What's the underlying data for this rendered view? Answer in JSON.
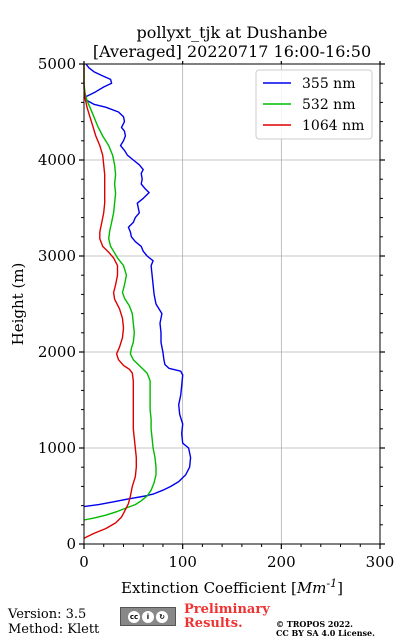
{
  "title": {
    "line1": "pollyxt_tjk at Dushanbe",
    "line2": "[Averaged] 20220717 16:00-16:50"
  },
  "footer": {
    "version": "Version: 3.5",
    "method": "Method: Klett",
    "preliminary_line1": "Preliminary",
    "preliminary_line2": "Results.",
    "copyright_line1": "© TROPOS 2022.",
    "copyright_line2": "CC BY SA 4.0 License.",
    "license_icon": "cc-by-sa-icon"
  },
  "chart_data": {
    "type": "line",
    "title": "pollyxt_tjk at Dushanbe [Averaged] 20220717 16:00-16:50",
    "xlabel": "Extinction Coefficient [Mm^-1]",
    "ylabel": "Height (m)",
    "xlim": [
      0,
      300
    ],
    "ylim": [
      0,
      5000
    ],
    "xticks": [
      0,
      100,
      200,
      300
    ],
    "yticks": [
      0,
      1000,
      2000,
      3000,
      4000,
      5000
    ],
    "grid": true,
    "legend_position": "top-right",
    "series": [
      {
        "name": "355 nm",
        "color": "#0000ee",
        "points": [
          [
            0,
            390
          ],
          [
            15,
            410
          ],
          [
            30,
            440
          ],
          [
            45,
            470
          ],
          [
            62,
            500
          ],
          [
            70,
            520
          ],
          [
            80,
            560
          ],
          [
            88,
            600
          ],
          [
            96,
            650
          ],
          [
            103,
            720
          ],
          [
            107,
            800
          ],
          [
            108,
            900
          ],
          [
            106,
            1000
          ],
          [
            100,
            1050
          ],
          [
            99,
            1150
          ],
          [
            100,
            1250
          ],
          [
            97,
            1350
          ],
          [
            96,
            1450
          ],
          [
            98,
            1550
          ],
          [
            99,
            1650
          ],
          [
            100,
            1760
          ],
          [
            98,
            1800
          ],
          [
            86,
            1830
          ],
          [
            82,
            1870
          ],
          [
            81,
            1920
          ],
          [
            80,
            2000
          ],
          [
            78,
            2100
          ],
          [
            78,
            2200
          ],
          [
            77,
            2300
          ],
          [
            79,
            2400
          ],
          [
            73,
            2500
          ],
          [
            71,
            2600
          ],
          [
            70,
            2700
          ],
          [
            69,
            2800
          ],
          [
            68,
            2900
          ],
          [
            70,
            2950
          ],
          [
            64,
            3000
          ],
          [
            60,
            3050
          ],
          [
            58,
            3100
          ],
          [
            52,
            3150
          ],
          [
            48,
            3200
          ],
          [
            47,
            3250
          ],
          [
            45,
            3300
          ],
          [
            50,
            3350
          ],
          [
            52,
            3400
          ],
          [
            56,
            3450
          ],
          [
            55,
            3500
          ],
          [
            54,
            3550
          ],
          [
            60,
            3600
          ],
          [
            66,
            3660
          ],
          [
            62,
            3700
          ],
          [
            58,
            3750
          ],
          [
            59,
            3800
          ],
          [
            58,
            3860
          ],
          [
            60,
            3900
          ],
          [
            56,
            3950
          ],
          [
            50,
            4000
          ],
          [
            44,
            4050
          ],
          [
            41,
            4100
          ],
          [
            37,
            4150
          ],
          [
            40,
            4200
          ],
          [
            42,
            4250
          ],
          [
            41,
            4300
          ],
          [
            38,
            4340
          ],
          [
            41,
            4400
          ],
          [
            40,
            4450
          ],
          [
            35,
            4500
          ],
          [
            22,
            4550
          ],
          [
            10,
            4580
          ],
          [
            3,
            4620
          ],
          [
            0,
            4650
          ],
          [
            10,
            4700
          ],
          [
            20,
            4760
          ],
          [
            28,
            4800
          ],
          [
            27,
            4840
          ],
          [
            18,
            4880
          ],
          [
            10,
            4920
          ],
          [
            5,
            4960
          ],
          [
            2,
            5000
          ]
        ]
      },
      {
        "name": "532 nm",
        "color": "#00bb00",
        "points": [
          [
            0,
            250
          ],
          [
            10,
            270
          ],
          [
            22,
            300
          ],
          [
            34,
            340
          ],
          [
            44,
            380
          ],
          [
            52,
            410
          ],
          [
            58,
            450
          ],
          [
            64,
            500
          ],
          [
            68,
            560
          ],
          [
            71,
            640
          ],
          [
            73,
            720
          ],
          [
            73,
            800
          ],
          [
            72,
            900
          ],
          [
            70,
            1000
          ],
          [
            69,
            1100
          ],
          [
            68,
            1200
          ],
          [
            68,
            1300
          ],
          [
            67,
            1400
          ],
          [
            67,
            1500
          ],
          [
            67,
            1600
          ],
          [
            67,
            1700
          ],
          [
            64,
            1780
          ],
          [
            57,
            1850
          ],
          [
            50,
            1920
          ],
          [
            47,
            1980
          ],
          [
            48,
            2040
          ],
          [
            50,
            2100
          ],
          [
            51,
            2200
          ],
          [
            50,
            2300
          ],
          [
            49,
            2400
          ],
          [
            46,
            2480
          ],
          [
            41,
            2560
          ],
          [
            39,
            2620
          ],
          [
            41,
            2700
          ],
          [
            43,
            2800
          ],
          [
            40,
            2900
          ],
          [
            34,
            2980
          ],
          [
            30,
            3050
          ],
          [
            27,
            3100
          ],
          [
            25,
            3180
          ],
          [
            26,
            3260
          ],
          [
            28,
            3350
          ],
          [
            30,
            3450
          ],
          [
            31,
            3550
          ],
          [
            32,
            3650
          ],
          [
            31,
            3750
          ],
          [
            32,
            3850
          ],
          [
            31,
            3950
          ],
          [
            29,
            4050
          ],
          [
            25,
            4150
          ],
          [
            19,
            4250
          ],
          [
            14,
            4350
          ],
          [
            10,
            4450
          ],
          [
            6,
            4550
          ],
          [
            3,
            4620
          ],
          [
            1,
            4700
          ],
          [
            0,
            4800
          ],
          [
            0,
            5000
          ]
        ]
      },
      {
        "name": "1064 nm",
        "color": "#dd0000",
        "points": [
          [
            0,
            60
          ],
          [
            10,
            110
          ],
          [
            22,
            160
          ],
          [
            32,
            220
          ],
          [
            38,
            280
          ],
          [
            41,
            340
          ],
          [
            45,
            420
          ],
          [
            47,
            500
          ],
          [
            49,
            600
          ],
          [
            52,
            700
          ],
          [
            53,
            800
          ],
          [
            53,
            900
          ],
          [
            52,
            1000
          ],
          [
            51,
            1100
          ],
          [
            50,
            1200
          ],
          [
            50,
            1300
          ],
          [
            50,
            1400
          ],
          [
            50,
            1500
          ],
          [
            50,
            1600
          ],
          [
            50,
            1700
          ],
          [
            49,
            1780
          ],
          [
            46,
            1820
          ],
          [
            40,
            1860
          ],
          [
            35,
            1920
          ],
          [
            33,
            1980
          ],
          [
            36,
            2050
          ],
          [
            39,
            2150
          ],
          [
            40,
            2250
          ],
          [
            39,
            2350
          ],
          [
            36,
            2450
          ],
          [
            31,
            2550
          ],
          [
            30,
            2620
          ],
          [
            32,
            2700
          ],
          [
            34,
            2800
          ],
          [
            34,
            2900
          ],
          [
            30,
            2980
          ],
          [
            24,
            3050
          ],
          [
            19,
            3100
          ],
          [
            16,
            3180
          ],
          [
            16,
            3250
          ],
          [
            18,
            3350
          ],
          [
            20,
            3450
          ],
          [
            21,
            3550
          ],
          [
            21,
            3650
          ],
          [
            21,
            3750
          ],
          [
            21,
            3850
          ],
          [
            20,
            3950
          ],
          [
            19,
            4050
          ],
          [
            16,
            4150
          ],
          [
            12,
            4250
          ],
          [
            9,
            4350
          ],
          [
            6,
            4450
          ],
          [
            3,
            4550
          ],
          [
            1,
            4650
          ],
          [
            0,
            4750
          ],
          [
            0,
            5000
          ]
        ]
      }
    ]
  }
}
